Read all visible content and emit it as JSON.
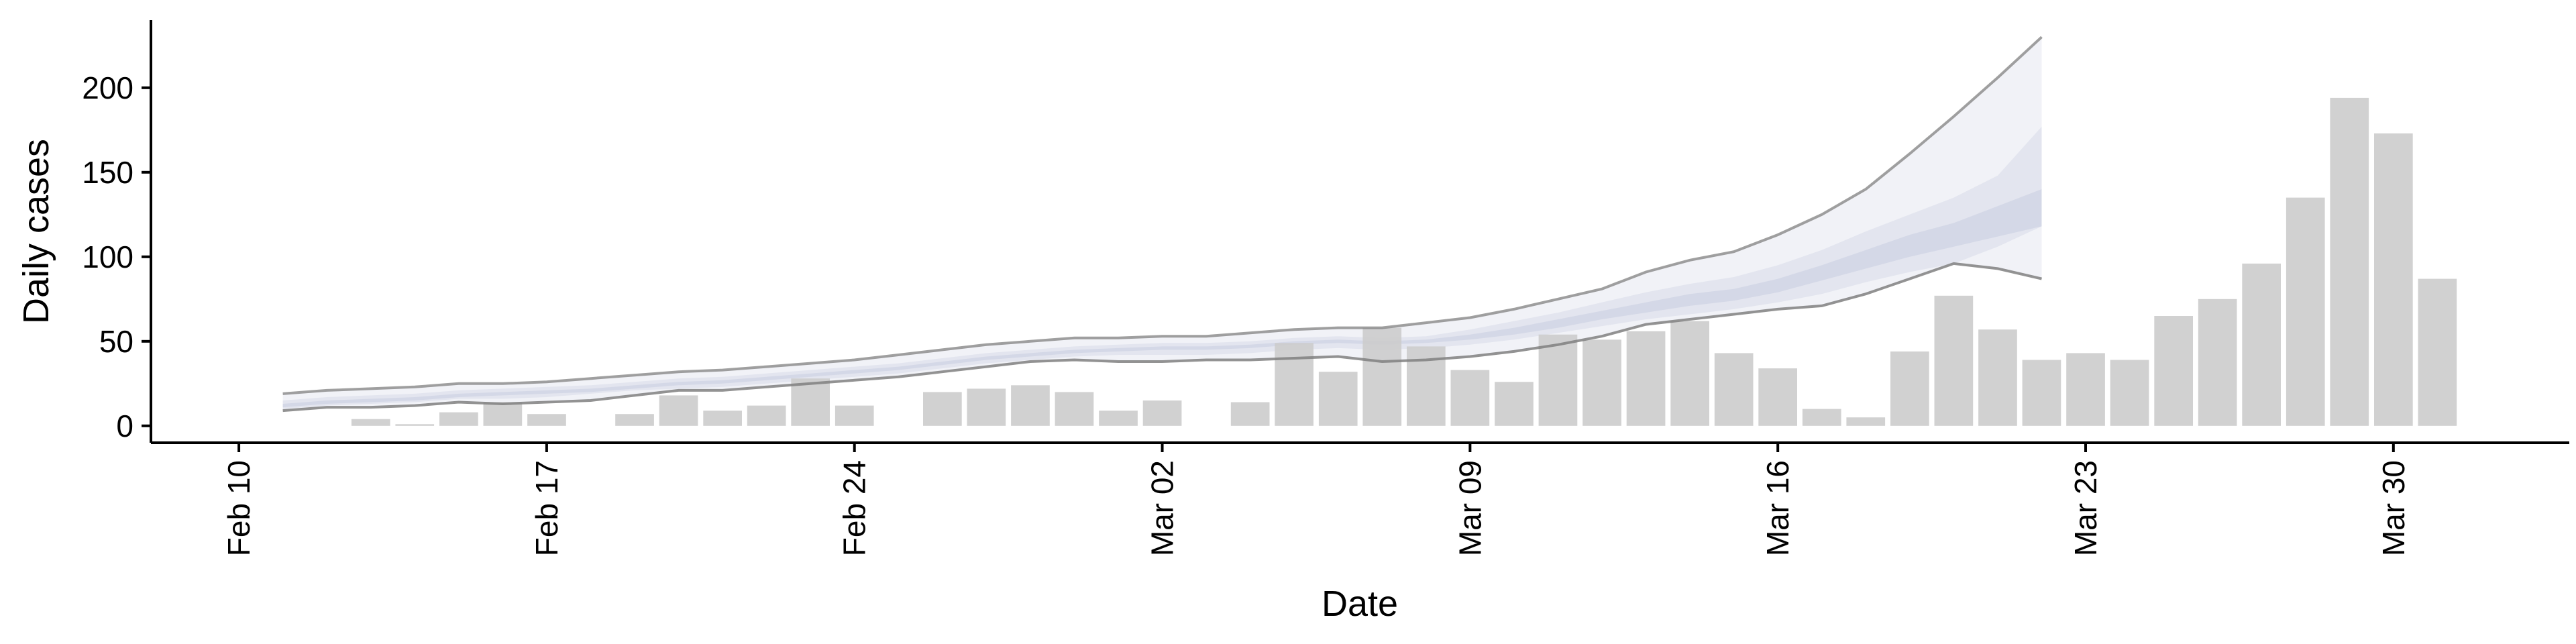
{
  "chart_data": {
    "type": "bar",
    "title": "",
    "xlabel": "Date",
    "ylabel": "Daily cases",
    "xlim": [
      "2020-02-08",
      "2020-04-03"
    ],
    "ylim": [
      -10,
      240
    ],
    "x_ticks": [
      {
        "date": "2020-02-10",
        "label": "Feb 10"
      },
      {
        "date": "2020-02-17",
        "label": "Feb 17"
      },
      {
        "date": "2020-02-24",
        "label": "Feb 24"
      },
      {
        "date": "2020-03-02",
        "label": "Mar 02"
      },
      {
        "date": "2020-03-09",
        "label": "Mar 09"
      },
      {
        "date": "2020-03-16",
        "label": "Mar 16"
      },
      {
        "date": "2020-03-23",
        "label": "Mar 23"
      },
      {
        "date": "2020-03-30",
        "label": "Mar 30"
      }
    ],
    "y_ticks": [
      0,
      50,
      100,
      150,
      200
    ],
    "grid": false,
    "legend": "none",
    "bar_color": "#cccccc",
    "band_color": "#c8cde0",
    "line_color": "#808080",
    "bars": {
      "name": "Daily cases",
      "x": [
        "2020-02-13",
        "2020-02-14",
        "2020-02-15",
        "2020-02-16",
        "2020-02-17",
        "2020-02-19",
        "2020-02-20",
        "2020-02-21",
        "2020-02-22",
        "2020-02-23",
        "2020-02-24",
        "2020-02-26",
        "2020-02-27",
        "2020-02-28",
        "2020-02-29",
        "2020-03-01",
        "2020-03-02",
        "2020-03-04",
        "2020-03-05",
        "2020-03-06",
        "2020-03-07",
        "2020-03-08",
        "2020-03-09",
        "2020-03-10",
        "2020-03-11",
        "2020-03-12",
        "2020-03-13",
        "2020-03-14",
        "2020-03-15",
        "2020-03-16",
        "2020-03-17",
        "2020-03-18",
        "2020-03-19",
        "2020-03-20",
        "2020-03-21",
        "2020-03-22",
        "2020-03-23",
        "2020-03-24",
        "2020-03-25",
        "2020-03-26",
        "2020-03-27",
        "2020-03-28",
        "2020-03-29",
        "2020-03-30",
        "2020-03-31"
      ],
      "values": [
        4,
        1,
        8,
        14,
        7,
        7,
        18,
        9,
        12,
        28,
        12,
        20,
        22,
        24,
        20,
        9,
        15,
        14,
        49,
        32,
        58,
        47,
        33,
        26,
        54,
        51,
        56,
        62,
        43,
        34,
        10,
        5,
        44,
        77,
        57,
        39,
        43,
        39,
        65,
        75,
        96,
        135,
        194,
        173,
        87
      ]
    },
    "estimate": {
      "x": [
        "2020-02-11",
        "2020-02-12",
        "2020-02-13",
        "2020-02-14",
        "2020-02-15",
        "2020-02-16",
        "2020-02-17",
        "2020-02-18",
        "2020-02-19",
        "2020-02-20",
        "2020-02-21",
        "2020-02-22",
        "2020-02-23",
        "2020-02-24",
        "2020-02-25",
        "2020-02-26",
        "2020-02-27",
        "2020-02-28",
        "2020-02-29",
        "2020-03-01",
        "2020-03-02",
        "2020-03-03",
        "2020-03-04",
        "2020-03-05",
        "2020-03-06",
        "2020-03-07",
        "2020-03-08",
        "2020-03-09",
        "2020-03-10",
        "2020-03-11",
        "2020-03-12",
        "2020-03-13",
        "2020-03-14",
        "2020-03-15",
        "2020-03-16",
        "2020-03-17",
        "2020-03-18",
        "2020-03-19",
        "2020-03-20",
        "2020-03-21",
        "2020-03-22"
      ],
      "upper_90": [
        19,
        21,
        22,
        23,
        25,
        25,
        26,
        28,
        30,
        32,
        33,
        35,
        37,
        39,
        42,
        45,
        48,
        50,
        52,
        52,
        53,
        53,
        55,
        57,
        58,
        58,
        61,
        64,
        69,
        75,
        81,
        91,
        98,
        103,
        113,
        125,
        140,
        161,
        183,
        206,
        230
      ],
      "upper_50": [
        15,
        17,
        18,
        19,
        21,
        22,
        23,
        24,
        26,
        28,
        29,
        31,
        33,
        35,
        37,
        40,
        43,
        45,
        47,
        48,
        49,
        49,
        50,
        52,
        53,
        52,
        53,
        57,
        62,
        67,
        73,
        79,
        84,
        88,
        95,
        104,
        115,
        125,
        135,
        148,
        177
      ],
      "upper_20": [
        13,
        15,
        16,
        17,
        19,
        20,
        21,
        22,
        24,
        26,
        27,
        29,
        31,
        33,
        35,
        38,
        41,
        43,
        45,
        46,
        47,
        47,
        48,
        50,
        51,
        50,
        51,
        54,
        58,
        63,
        68,
        73,
        78,
        81,
        87,
        95,
        104,
        113,
        120,
        130,
        140
      ],
      "lower_20": [
        11,
        13,
        14,
        15,
        17,
        18,
        19,
        20,
        22,
        24,
        25,
        27,
        29,
        31,
        33,
        36,
        39,
        41,
        43,
        44,
        45,
        45,
        46,
        48,
        49,
        48,
        49,
        51,
        54,
        58,
        63,
        67,
        71,
        74,
        79,
        86,
        93,
        100,
        106,
        112,
        118
      ],
      "lower_50": [
        10,
        12,
        13,
        14,
        16,
        16,
        17,
        19,
        21,
        22,
        23,
        25,
        27,
        29,
        31,
        34,
        37,
        39,
        41,
        42,
        42,
        42,
        43,
        45,
        46,
        45,
        46,
        48,
        51,
        55,
        59,
        63,
        66,
        69,
        73,
        78,
        85,
        91,
        96,
        106,
        118
      ],
      "lower_90": [
        9,
        11,
        11,
        12,
        14,
        13,
        14,
        15,
        18,
        21,
        21,
        23,
        25,
        27,
        29,
        32,
        35,
        38,
        39,
        38,
        38,
        39,
        39,
        40,
        41,
        38,
        39,
        41,
        44,
        48,
        53,
        60,
        63,
        66,
        69,
        71,
        78,
        87,
        96,
        93,
        87
      ]
    }
  }
}
